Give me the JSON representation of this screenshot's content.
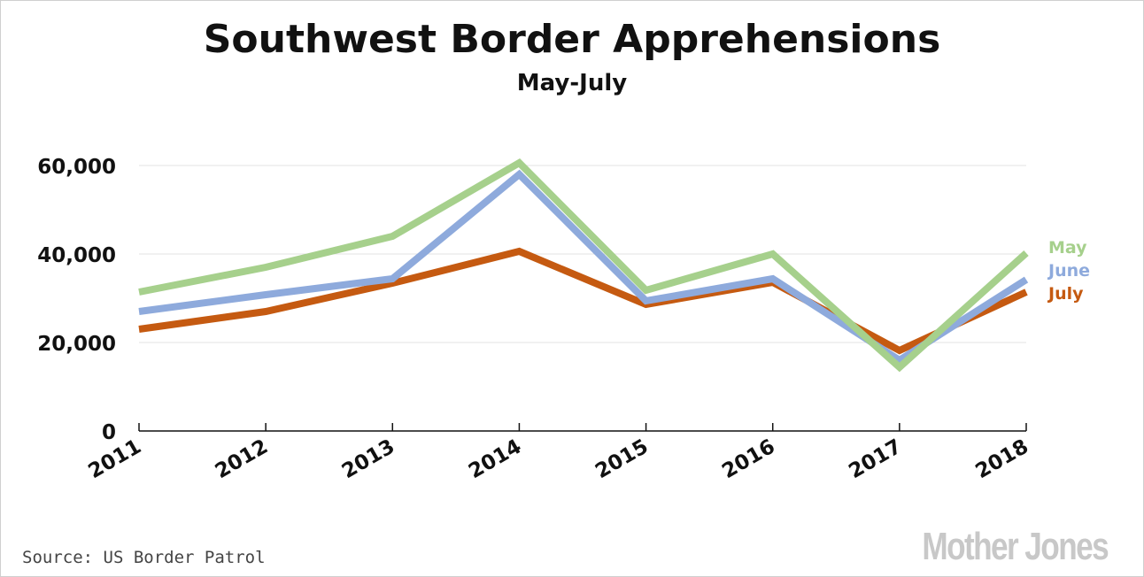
{
  "chart_data": {
    "type": "line",
    "title": "Southwest Border Apprehensions",
    "subtitle": "May-July",
    "xlabel": "",
    "ylabel": "",
    "x": [
      "2011",
      "2012",
      "2013",
      "2014",
      "2015",
      "2016",
      "2017",
      "2018"
    ],
    "y_ticks": [
      "0",
      "20,000",
      "40,000",
      "60,000"
    ],
    "ylim": [
      0,
      60000
    ],
    "grid": true,
    "legend_placement": "right",
    "series": [
      {
        "name": "May",
        "color": "#a6d08c",
        "values": [
          31400,
          37000,
          44000,
          60600,
          31800,
          40000,
          14400,
          40200
        ]
      },
      {
        "name": "June",
        "color": "#8eaadc",
        "values": [
          27000,
          30800,
          34400,
          58000,
          29400,
          34400,
          16000,
          34200
        ]
      },
      {
        "name": "July",
        "color": "#c55a11",
        "values": [
          23000,
          27000,
          33400,
          40600,
          28600,
          33600,
          18200,
          31400
        ]
      }
    ]
  },
  "source": "Source: US Border Patrol",
  "logo": "Mother Jones"
}
